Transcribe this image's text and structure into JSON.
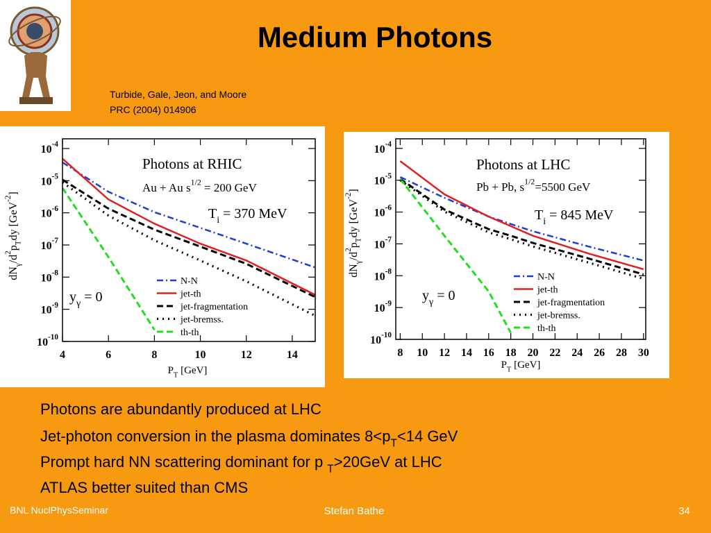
{
  "header": {
    "title": "Medium Photons",
    "citation": [
      "Turbide, Gale, Jeon, and Moore",
      "PRC (2004) 014906"
    ]
  },
  "chart_data": [
    {
      "type": "line",
      "title": "Photons at RHIC",
      "annotations": [
        [
          "Au + Au  s",
          {
            "sup": "1/2"
          },
          " = 200 GeV"
        ],
        [
          "T",
          {
            "sub": "i"
          },
          " = 370 MeV"
        ],
        [
          "y",
          {
            "sub": "γ"
          },
          " = 0"
        ]
      ],
      "x_label": [
        "P",
        {
          "sub": "T"
        },
        " [GeV]"
      ],
      "y_label": [
        "dN",
        {
          "sub": "γ"
        },
        "/d",
        {
          "sup": "2"
        },
        "p",
        {
          "sub": "T"
        },
        "dy [GeV",
        {
          "sup": "-2"
        },
        "]"
      ],
      "log_y": true,
      "xlim": [
        4,
        15
      ],
      "xticks": [
        4,
        6,
        8,
        10,
        12,
        14
      ],
      "ylim": [
        1e-10,
        0.0002
      ],
      "yticks": [
        {
          "value": 0.0001,
          "label": [
            "10",
            {
              "sup": "-4"
            }
          ]
        },
        {
          "value": 1e-05,
          "label": [
            "10",
            {
              "sup": "-5"
            }
          ]
        },
        {
          "value": 1e-06,
          "label": [
            "10",
            {
              "sup": "-6"
            }
          ]
        },
        {
          "value": 1e-07,
          "label": [
            "10",
            {
              "sup": "-7"
            }
          ]
        },
        {
          "value": 1e-08,
          "label": [
            "10",
            {
              "sup": "-8"
            }
          ]
        },
        {
          "value": 1e-09,
          "label": [
            "10",
            {
              "sup": "-9"
            }
          ]
        },
        {
          "value": 1e-10,
          "label": [
            "10",
            {
              "sup": "-10"
            }
          ]
        }
      ],
      "x": [
        4,
        6,
        8,
        10,
        12,
        15
      ],
      "series": [
        {
          "name": "N-N",
          "color": "#1a3fd6",
          "style": "dashdot",
          "values": [
            3.7e-05,
            4.5e-06,
            1.05e-06,
            3.4e-07,
            1.1e-07,
            2e-08
          ]
        },
        {
          "name": "jet-th",
          "color": "#e02020",
          "style": "solid",
          "values": [
            4.8e-05,
            2.6e-06,
            4.6e-07,
            1.1e-07,
            3.3e-08,
            2.8e-09
          ]
        },
        {
          "name": "jet-fragmentation",
          "color": "#000000",
          "style": "dashed",
          "values": [
            1.07e-05,
            1.35e-06,
            3e-07,
            8.9e-08,
            2.6e-08,
            2.4e-09
          ]
        },
        {
          "name": "jet-bremss.",
          "color": "#000000",
          "style": "dotted",
          "values": [
            8.9e-06,
            8.2e-07,
            1.4e-07,
            3.3e-08,
            7.4e-09,
            6.3e-10
          ]
        },
        {
          "name": "th-th",
          "color": "#22dd22",
          "style": "dashed",
          "values": [
            5.9e-06,
            4.2e-08,
            2.3e-10,
            null,
            null,
            null
          ]
        }
      ]
    },
    {
      "type": "line",
      "title": "Photons at LHC",
      "annotations": [
        [
          "Pb + Pb, s",
          {
            "sup": "1/2"
          },
          "=5500 GeV"
        ],
        [
          "T",
          {
            "sub": "i"
          },
          " = 845 MeV"
        ],
        [
          "y",
          {
            "sub": "γ"
          },
          " = 0"
        ]
      ],
      "x_label": [
        "P",
        {
          "sub": "T"
        },
        " [GeV]"
      ],
      "y_label": [
        "dN",
        {
          "sub": "γ"
        },
        "/d",
        {
          "sup": "2"
        },
        "p",
        {
          "sub": "T"
        },
        "dy [GeV",
        {
          "sup": "-2"
        },
        "]"
      ],
      "log_y": true,
      "xlim": [
        7.6,
        30.2
      ],
      "xticks": [
        8,
        10,
        12,
        14,
        16,
        18,
        20,
        22,
        24,
        26,
        28,
        30
      ],
      "ylim": [
        1e-10,
        0.0002
      ],
      "yticks": [
        {
          "value": 0.0001,
          "label": [
            "10",
            {
              "sup": "-4"
            }
          ]
        },
        {
          "value": 1e-05,
          "label": [
            "10",
            {
              "sup": "-5"
            }
          ]
        },
        {
          "value": 1e-06,
          "label": [
            "10",
            {
              "sup": "-6"
            }
          ]
        },
        {
          "value": 1e-07,
          "label": [
            "10",
            {
              "sup": "-7"
            }
          ]
        },
        {
          "value": 1e-08,
          "label": [
            "10",
            {
              "sup": "-8"
            }
          ]
        },
        {
          "value": 1e-09,
          "label": [
            "10",
            {
              "sup": "-9"
            }
          ]
        },
        {
          "value": 1e-10,
          "label": [
            "10",
            {
              "sup": "-10"
            }
          ]
        }
      ],
      "x": [
        8,
        12,
        16,
        18,
        20,
        25,
        30
      ],
      "series": [
        {
          "name": "N-N",
          "color": "#1a3fd6",
          "style": "dashdot",
          "values": [
            1.26e-05,
            2.8e-06,
            7.2e-07,
            4.2e-07,
            2.5e-07,
            8.3e-08,
            3e-08
          ]
        },
        {
          "name": "jet-th",
          "color": "#e02020",
          "style": "solid",
          "values": [
            4e-05,
            3.6e-06,
            7.2e-07,
            3.6e-07,
            1.8e-07,
            5e-08,
            1.6e-08
          ]
        },
        {
          "name": "jet-fragmentation",
          "color": "#000000",
          "style": "dashed",
          "values": [
            1.1e-05,
            1.2e-06,
            2.9e-07,
            1.8e-07,
            1.07e-07,
            3.5e-08,
            1.1e-08
          ]
        },
        {
          "name": "jet-bremss.",
          "color": "#000000",
          "style": "dotted",
          "values": [
            1e-05,
            1.03e-06,
            2.3e-07,
            1.4e-07,
            8.3e-08,
            2.6e-08,
            8e-09
          ]
        },
        {
          "name": "th-th",
          "color": "#22dd22",
          "style": "dashed",
          "values": [
            1.1e-05,
            1.8e-07,
            3.2e-09,
            1.6e-10,
            null,
            null,
            null
          ]
        }
      ]
    }
  ],
  "bullets": [
    [
      "Photons are abundantly produced at LHC"
    ],
    [
      "Jet-photon conversion in the plasma dominates 8<p",
      {
        "sub": "T"
      },
      "<14 GeV"
    ],
    [
      "Prompt hard NN scattering dominant for p ",
      {
        "sub": "T"
      },
      ">20GeV at LHC"
    ],
    [
      "ATLAS better suited than CMS"
    ]
  ],
  "footer": {
    "left": "BNL NuclPhysSeminar",
    "center": "Stefan Bathe",
    "page": "34"
  }
}
